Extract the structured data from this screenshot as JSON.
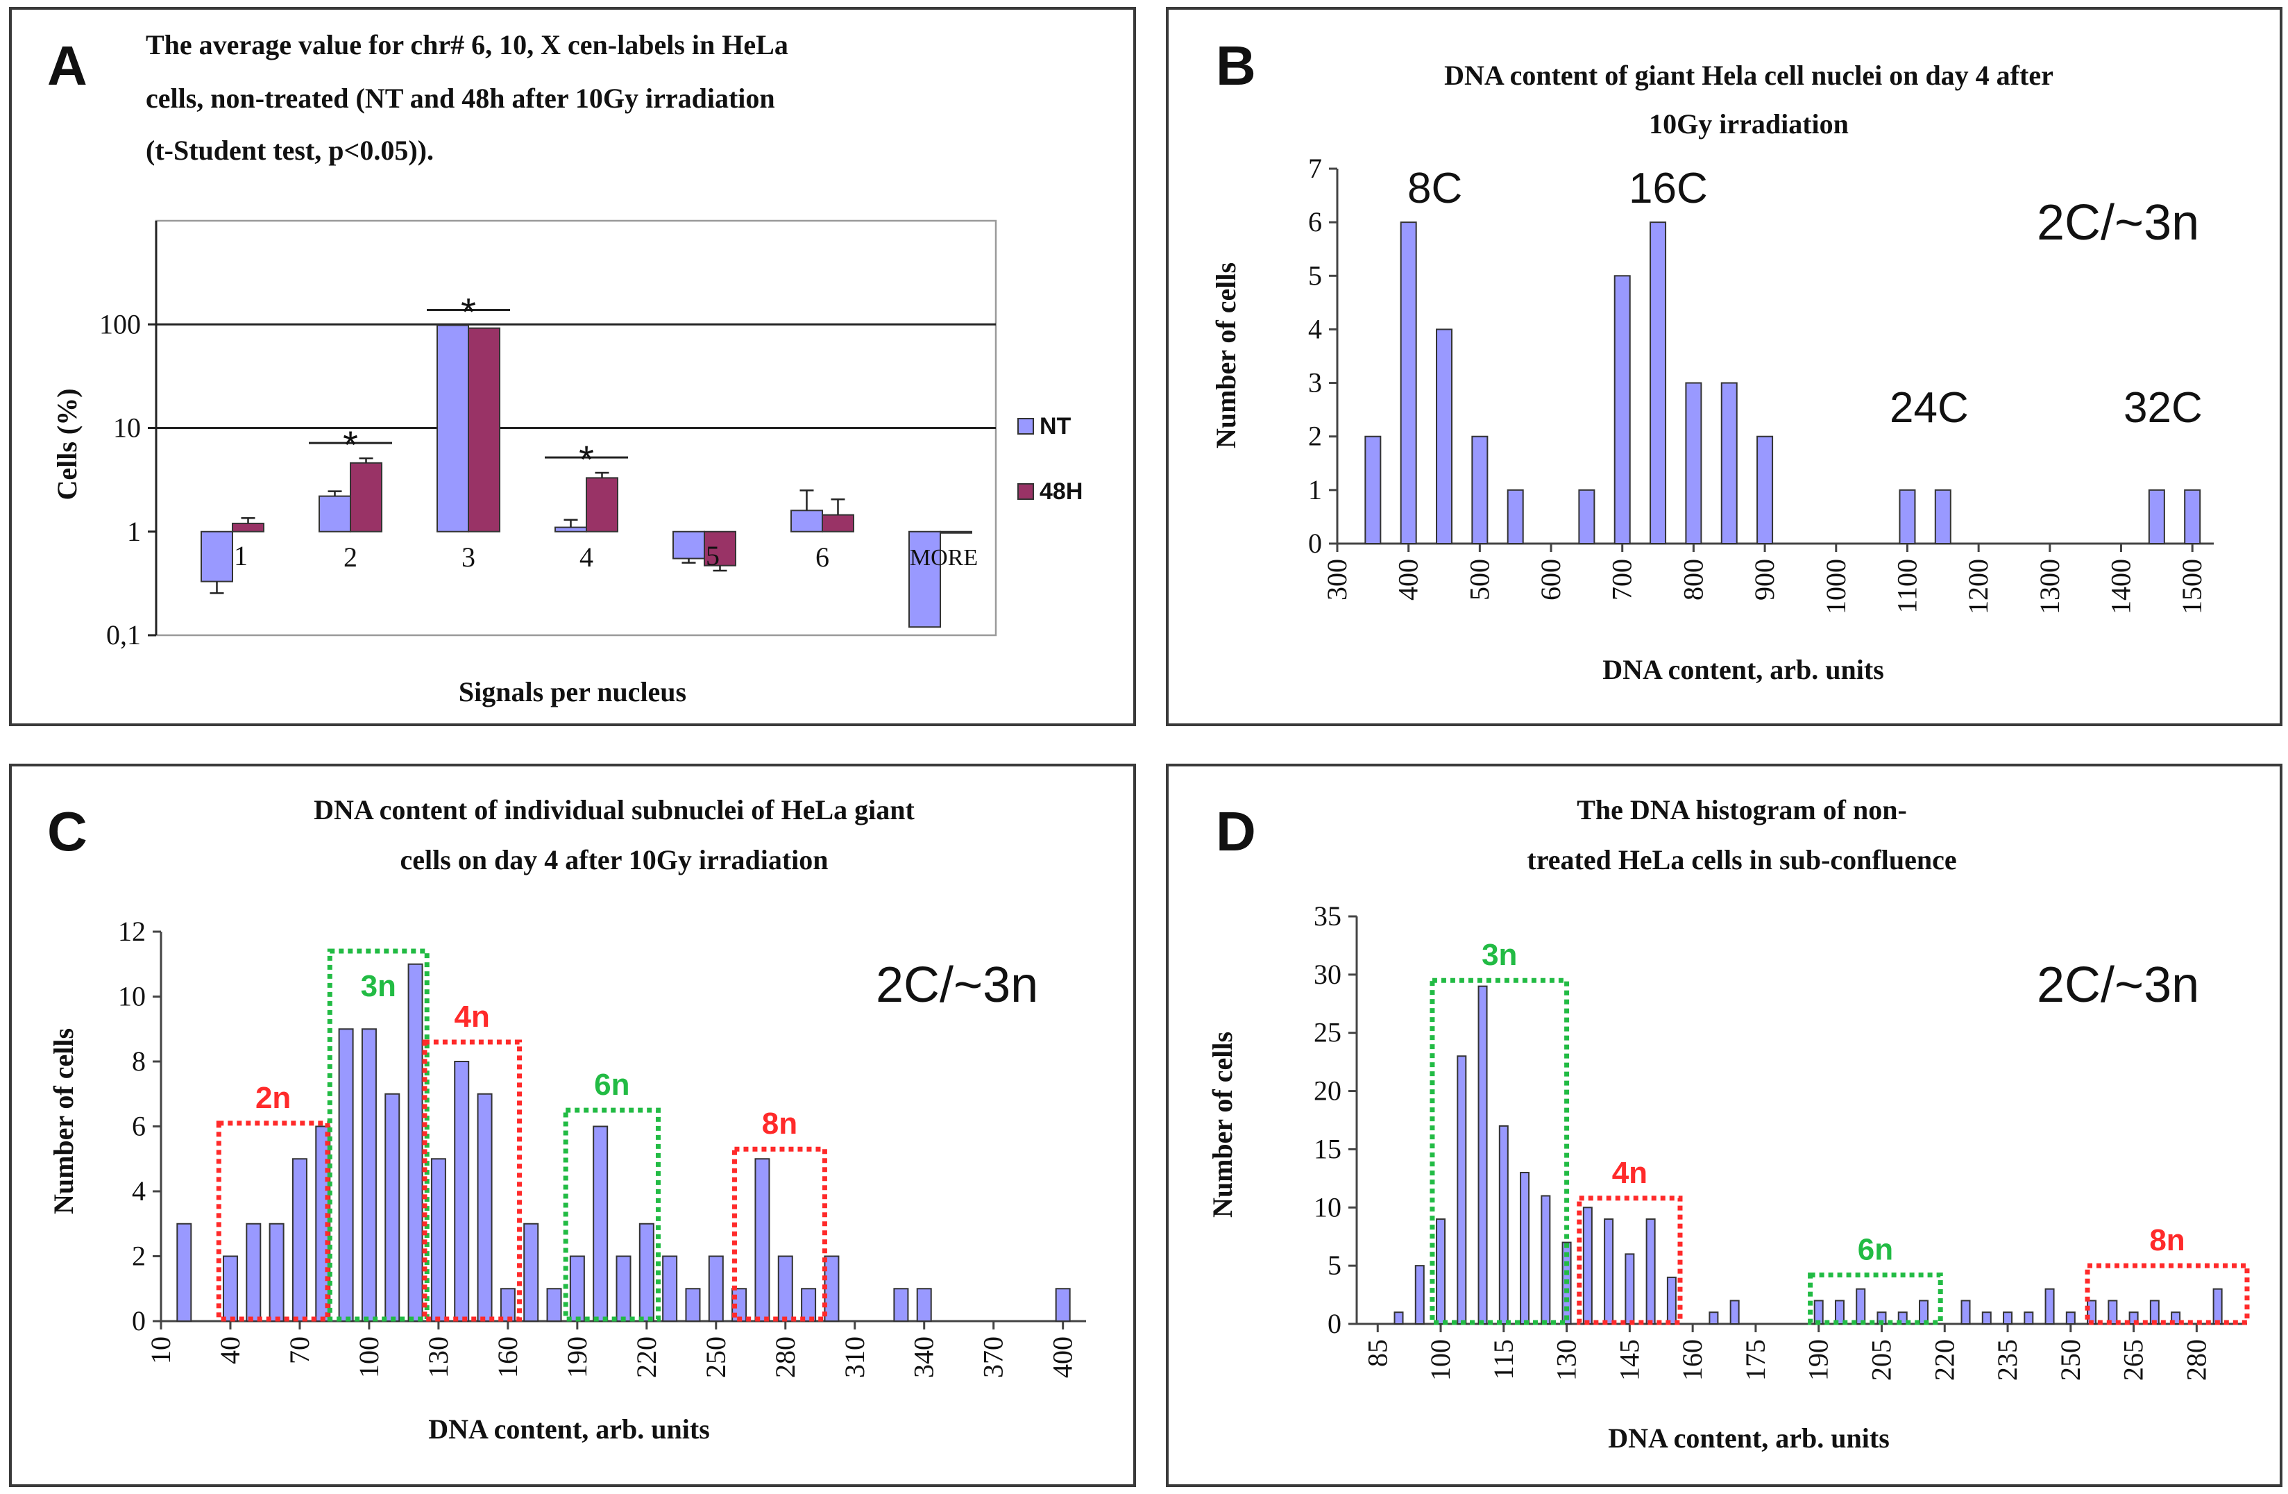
{
  "colors": {
    "nt": "#9999ff",
    "h48": "#993366",
    "red_box": "#ff2a2a",
    "green_box": "#22bb44"
  },
  "chart_data": [
    {
      "panel": "A",
      "type": "bar",
      "title_lines": [
        "The average value for chr# 6, 10, X  cen-labels  in  HeLa",
        "cells,  non-treated  (NT and 48h after 10Gy irradiation",
        "(t-Student  test, p<0.05))."
      ],
      "xlabel": "Signals per nucleus",
      "ylabel": "Cells (%)",
      "yscale": "log",
      "ylim": [
        0.1,
        1000
      ],
      "ytick_labels": [
        "0,1",
        "1",
        "10",
        "100"
      ],
      "ytick_values": [
        0.1,
        1,
        10,
        100
      ],
      "categories": [
        "1",
        "2",
        "3",
        "4",
        "5",
        "6",
        "MORE"
      ],
      "series": [
        {
          "name": "NT",
          "values": [
            0.33,
            2.2,
            98,
            1.1,
            0.55,
            1.6,
            0.12
          ],
          "errors": [
            0.15,
            0.25,
            0,
            0.2,
            0.1,
            0.9,
            0
          ]
        },
        {
          "name": "48H",
          "values": [
            1.2,
            4.6,
            92,
            3.3,
            0.47,
            1.45,
            1.0
          ],
          "errors": [
            0.15,
            0.5,
            0,
            0.4,
            0.1,
            0.6,
            0
          ]
        }
      ],
      "significance": [
        "2",
        "3",
        "4"
      ],
      "significance_mark": "*",
      "legend": [
        "NT",
        "48H"
      ]
    },
    {
      "panel": "B",
      "type": "bar",
      "title_lines": [
        "DNA content of giant Hela cell nuclei on day 4 after",
        "10Gy irradiation"
      ],
      "xlabel": "DNA content, arb. units",
      "ylabel": "Number of cells",
      "ylim": [
        0,
        7
      ],
      "yticks": [
        "0",
        "1",
        "2",
        "3",
        "4",
        "5",
        "6",
        "7"
      ],
      "xtick_labels": [
        "300",
        "400",
        "500",
        "600",
        "700",
        "800",
        "900",
        "1000",
        "1100",
        "1200",
        "1300",
        "1400",
        "1500"
      ],
      "x": [
        350,
        400,
        450,
        500,
        550,
        650,
        700,
        750,
        800,
        850,
        900,
        1100,
        1150,
        1450,
        1500
      ],
      "values": [
        2,
        6,
        4,
        2,
        1,
        1,
        5,
        6,
        3,
        3,
        2,
        1,
        1,
        1,
        1
      ],
      "annotations": [
        "8C",
        "16C",
        "24C",
        "32C",
        "2C/~3n"
      ]
    },
    {
      "panel": "C",
      "type": "bar",
      "title_lines": [
        "DNA content of individual  subnuclei of HeLa  giant",
        "cells on  day 4 after 10Gy irradiation"
      ],
      "xlabel": "DNA content, arb. units",
      "ylabel": "Number of cells",
      "ylim": [
        0,
        12
      ],
      "yticks": [
        "0",
        "2",
        "4",
        "6",
        "8",
        "10",
        "12"
      ],
      "xtick_labels": [
        "10",
        "40",
        "70",
        "100",
        "130",
        "160",
        "190",
        "220",
        "250",
        "280",
        "310",
        "340",
        "370",
        "400"
      ],
      "x": [
        20,
        40,
        50,
        60,
        70,
        80,
        90,
        100,
        110,
        120,
        130,
        140,
        150,
        160,
        170,
        180,
        190,
        200,
        210,
        220,
        230,
        240,
        250,
        260,
        270,
        280,
        290,
        300,
        330,
        340,
        400
      ],
      "values": [
        3,
        2,
        3,
        3,
        5,
        6,
        9,
        9,
        7,
        11,
        5,
        8,
        7,
        1,
        3,
        1,
        2,
        6,
        2,
        3,
        2,
        1,
        2,
        1,
        5,
        2,
        1,
        2,
        1,
        1,
        1
      ],
      "boxes": [
        "2n",
        "3n",
        "4n",
        "6n",
        "8n"
      ],
      "annotation": "2C/~3n"
    },
    {
      "panel": "D",
      "type": "bar",
      "title_lines": [
        "The DNA histogram  of non-",
        "treated HeLa cells in sub-confluence"
      ],
      "xlabel": "DNA content, arb. units",
      "ylabel": "Number of cells",
      "ylim": [
        0,
        35
      ],
      "yticks": [
        "0",
        "5",
        "10",
        "15",
        "20",
        "25",
        "30",
        "35"
      ],
      "xtick_labels": [
        "85",
        "100",
        "115",
        "130",
        "145",
        "160",
        "175",
        "190",
        "205",
        "220",
        "235",
        "250",
        "265",
        "280"
      ],
      "x": [
        90,
        95,
        100,
        105,
        110,
        115,
        120,
        125,
        130,
        135,
        140,
        145,
        150,
        155,
        165,
        170,
        190,
        195,
        200,
        205,
        210,
        215,
        225,
        230,
        235,
        240,
        245,
        250,
        255,
        260,
        265,
        270,
        275,
        285
      ],
      "values": [
        1,
        5,
        9,
        23,
        29,
        17,
        13,
        11,
        7,
        10,
        9,
        6,
        9,
        4,
        1,
        2,
        2,
        2,
        3,
        1,
        1,
        2,
        2,
        1,
        1,
        1,
        3,
        1,
        2,
        2,
        1,
        2,
        1,
        3
      ],
      "boxes": [
        "3n",
        "4n",
        "6n",
        "8n"
      ],
      "annotation": "2C/~3n"
    }
  ]
}
